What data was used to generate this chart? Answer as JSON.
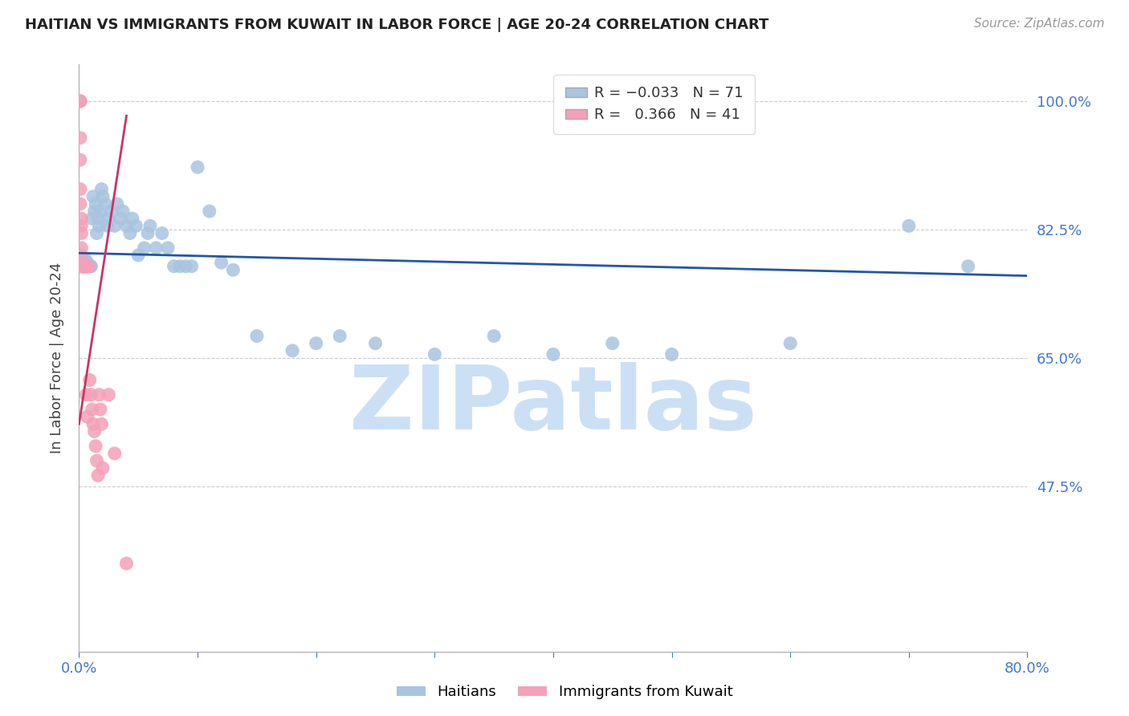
{
  "title": "HAITIAN VS IMMIGRANTS FROM KUWAIT IN LABOR FORCE | AGE 20-24 CORRELATION CHART",
  "source": "Source: ZipAtlas.com",
  "ylabel": "In Labor Force | Age 20-24",
  "xlim": [
    0.0,
    0.8
  ],
  "ylim": [
    0.25,
    1.05
  ],
  "yticks": [
    0.475,
    0.65,
    0.825,
    1.0
  ],
  "ytick_labels": [
    "47.5%",
    "65.0%",
    "82.5%",
    "100.0%"
  ],
  "xticks": [
    0.0,
    0.1,
    0.2,
    0.3,
    0.4,
    0.5,
    0.6,
    0.7,
    0.8
  ],
  "xtick_labels": [
    "0.0%",
    "",
    "",
    "",
    "",
    "",
    "",
    "",
    "80.0%"
  ],
  "blue_R": -0.033,
  "blue_N": 71,
  "pink_R": 0.366,
  "pink_N": 41,
  "blue_color": "#a8c4e0",
  "blue_line_color": "#2255aa",
  "pink_color": "#f4a0b8",
  "pink_line_color": "#cc3366",
  "blue_label": "Haitians",
  "pink_label": "Immigrants from Kuwait",
  "watermark": "ZIPatlas",
  "watermark_color": "#cce0f5",
  "background_color": "#ffffff",
  "tick_color": "#4477cc",
  "grid_color": "#cccccc",
  "blue_x": [
    0.001,
    0.001,
    0.002,
    0.002,
    0.002,
    0.003,
    0.003,
    0.004,
    0.004,
    0.005,
    0.005,
    0.005,
    0.006,
    0.006,
    0.007,
    0.007,
    0.008,
    0.008,
    0.009,
    0.01,
    0.01,
    0.011,
    0.012,
    0.013,
    0.014,
    0.015,
    0.016,
    0.017,
    0.018,
    0.019,
    0.02,
    0.022,
    0.024,
    0.025,
    0.027,
    0.03,
    0.032,
    0.035,
    0.037,
    0.04,
    0.043,
    0.045,
    0.048,
    0.05,
    0.055,
    0.058,
    0.06,
    0.065,
    0.07,
    0.075,
    0.08,
    0.085,
    0.09,
    0.095,
    0.1,
    0.11,
    0.12,
    0.13,
    0.15,
    0.18,
    0.2,
    0.22,
    0.25,
    0.3,
    0.35,
    0.4,
    0.45,
    0.5,
    0.6,
    0.7,
    0.75
  ],
  "blue_y": [
    0.775,
    0.775,
    0.775,
    0.775,
    0.78,
    0.775,
    0.775,
    0.775,
    0.775,
    0.775,
    0.78,
    0.785,
    0.775,
    0.775,
    0.775,
    0.78,
    0.775,
    0.775,
    0.775,
    0.775,
    0.775,
    0.84,
    0.87,
    0.85,
    0.86,
    0.82,
    0.84,
    0.83,
    0.85,
    0.88,
    0.87,
    0.86,
    0.83,
    0.84,
    0.85,
    0.83,
    0.86,
    0.84,
    0.85,
    0.83,
    0.82,
    0.84,
    0.83,
    0.79,
    0.8,
    0.82,
    0.83,
    0.8,
    0.82,
    0.8,
    0.775,
    0.775,
    0.775,
    0.775,
    0.91,
    0.85,
    0.78,
    0.77,
    0.68,
    0.66,
    0.67,
    0.68,
    0.67,
    0.655,
    0.68,
    0.655,
    0.67,
    0.655,
    0.67,
    0.83,
    0.775
  ],
  "pink_x": [
    0.001,
    0.001,
    0.001,
    0.001,
    0.001,
    0.001,
    0.001,
    0.002,
    0.002,
    0.002,
    0.002,
    0.002,
    0.002,
    0.003,
    0.003,
    0.003,
    0.003,
    0.004,
    0.004,
    0.004,
    0.005,
    0.005,
    0.006,
    0.006,
    0.007,
    0.008,
    0.009,
    0.01,
    0.011,
    0.012,
    0.013,
    0.014,
    0.015,
    0.016,
    0.017,
    0.018,
    0.019,
    0.02,
    0.025,
    0.03,
    0.04
  ],
  "pink_y": [
    1.0,
    1.0,
    1.0,
    0.95,
    0.92,
    0.88,
    0.86,
    0.84,
    0.83,
    0.82,
    0.8,
    0.79,
    0.775,
    0.775,
    0.775,
    0.775,
    0.775,
    0.775,
    0.775,
    0.775,
    0.775,
    0.775,
    0.775,
    0.6,
    0.57,
    0.775,
    0.62,
    0.6,
    0.58,
    0.56,
    0.55,
    0.53,
    0.51,
    0.49,
    0.6,
    0.58,
    0.56,
    0.5,
    0.6,
    0.52,
    0.37
  ],
  "blue_line_x": [
    0.0,
    0.8
  ],
  "blue_line_y": [
    0.793,
    0.762
  ],
  "pink_line_x": [
    0.0,
    0.04
  ],
  "pink_line_y": [
    0.56,
    0.98
  ]
}
